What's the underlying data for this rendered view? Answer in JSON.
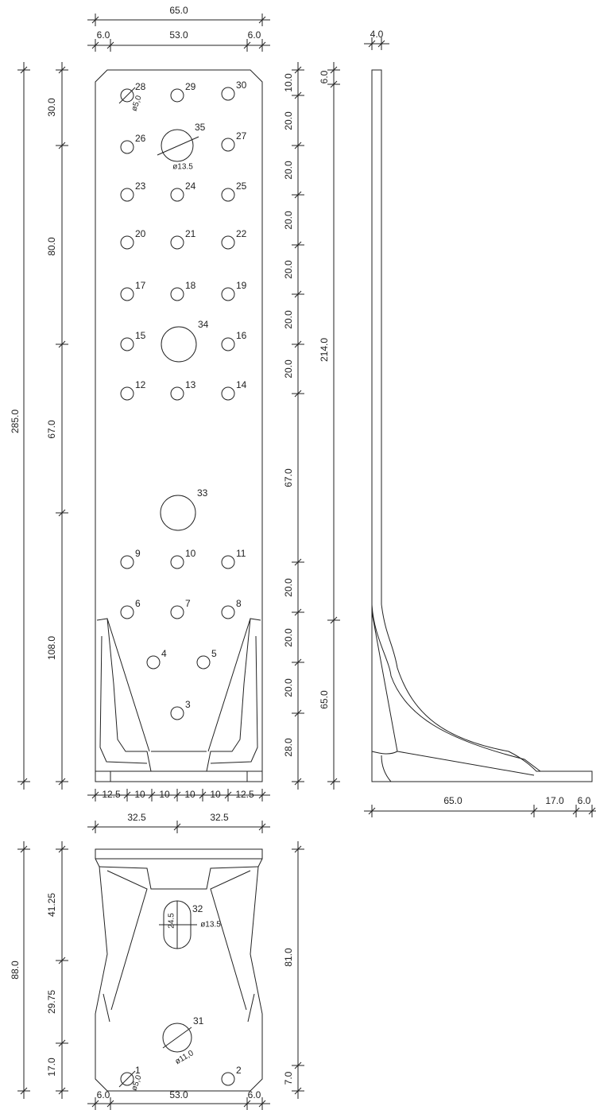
{
  "dimensions": [
    "65.0",
    "6.0",
    "53.0",
    "6.0",
    "4.0",
    "285.0",
    "30.0",
    "80.0",
    "67.0",
    "108.0",
    "10.0",
    "20.0",
    "20.0",
    "20.0",
    "20.0",
    "20.0",
    "20.0",
    "67.0",
    "20.0",
    "20.0",
    "20.0",
    "28.0",
    "6.0",
    "214.0",
    "65.0",
    "65.0",
    "17.0",
    "6.0",
    "12.5",
    "10",
    "10",
    "10",
    "10",
    "12.5",
    "32.5",
    "32.5",
    "88.0",
    "41.25",
    "29.75",
    "17.0",
    "81.0",
    "7.0",
    "6.0",
    "53.0",
    "6.0"
  ],
  "holes": [
    "28",
    "29",
    "30",
    "26",
    "35",
    "27",
    "23",
    "24",
    "25",
    "20",
    "21",
    "22",
    "17",
    "18",
    "19",
    "15",
    "34",
    "16",
    "12",
    "13",
    "14",
    "33",
    "9",
    "10",
    "11",
    "6",
    "7",
    "8",
    "4",
    "5",
    "3",
    "32",
    "31",
    "1",
    "2"
  ],
  "diameters": [
    "ø5,0",
    "ø13.5",
    "ø5,0",
    "ø11,0",
    "24.5",
    "ø13.5"
  ]
}
